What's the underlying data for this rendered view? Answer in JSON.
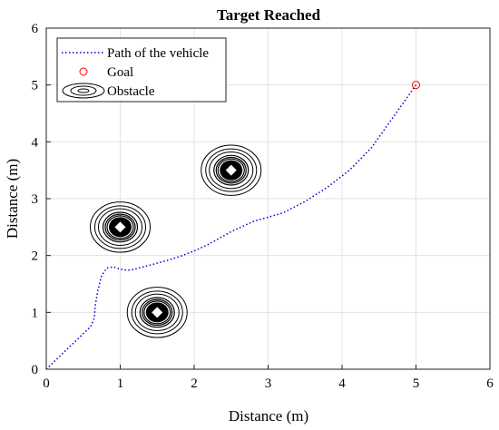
{
  "chart_data": {
    "type": "line",
    "title": "Target Reached",
    "xlabel": "Distance (m)",
    "ylabel": "Distance (m)",
    "xlim": [
      0,
      6
    ],
    "ylim": [
      0,
      6
    ],
    "xticks": [
      "0",
      "1",
      "2",
      "3",
      "4",
      "5",
      "6"
    ],
    "yticks": [
      "0",
      "1",
      "2",
      "3",
      "4",
      "5",
      "6"
    ],
    "grid": true,
    "legend_position": "top-left",
    "series": [
      {
        "name": "Path of the vehicle",
        "style": "dotted",
        "color": "#0000cc",
        "x": [
          0,
          0.2,
          0.4,
          0.6,
          0.65,
          0.66,
          0.7,
          0.75,
          0.82,
          0.9,
          1.0,
          1.1,
          1.2,
          1.4,
          1.6,
          1.8,
          2.0,
          2.2,
          2.5,
          2.8,
          3.2,
          3.5,
          3.8,
          4.1,
          4.4,
          4.7,
          5.0
        ],
        "y": [
          0,
          0.25,
          0.5,
          0.75,
          0.9,
          1.1,
          1.4,
          1.65,
          1.78,
          1.8,
          1.76,
          1.74,
          1.76,
          1.83,
          1.9,
          1.98,
          2.08,
          2.2,
          2.42,
          2.6,
          2.75,
          2.95,
          3.2,
          3.5,
          3.9,
          4.45,
          5.0
        ]
      },
      {
        "name": "Goal",
        "marker": "circle",
        "color": "#ff0000",
        "x": [
          5.0
        ],
        "y": [
          5.0
        ]
      },
      {
        "name": "Obstacle",
        "marker": "contour",
        "color": "#000000",
        "x": [
          1.0,
          1.5,
          2.5
        ],
        "y": [
          2.5,
          1.0,
          3.5
        ]
      }
    ]
  }
}
